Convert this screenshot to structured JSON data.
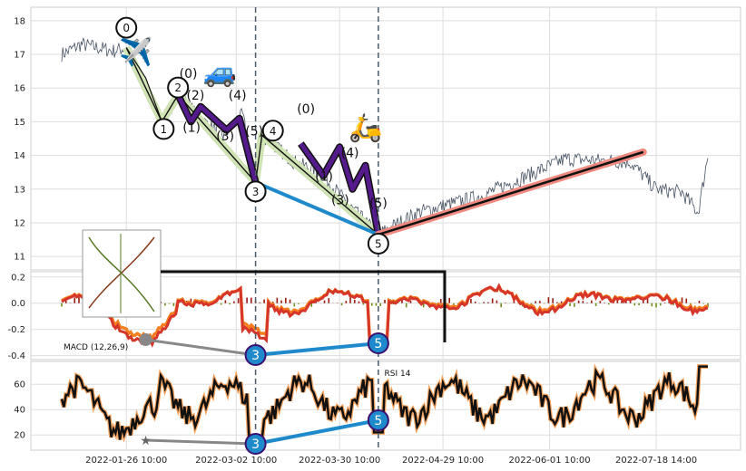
{
  "chart_data": [
    {
      "panel": "price",
      "type": "line",
      "ylim": [
        10.6,
        18.4
      ],
      "y_ticks": [
        11,
        12,
        13,
        14,
        15,
        16,
        17,
        18
      ],
      "grid": true,
      "x_ticks": [
        "2022-01-26 10:00",
        "2022-03-02 10:00",
        "2022-03-30 10:00",
        "2022-04-29 10:00",
        "2022-06-01 10:00",
        "2022-07-18 14:00"
      ],
      "wave_points": [
        {
          "label": "0",
          "t": 0.1,
          "y": 17.2
        },
        {
          "label": "1",
          "t": 0.155,
          "y": 15.0
        },
        {
          "label": "2",
          "t": 0.18,
          "y": 15.8
        },
        {
          "label": "3",
          "t": 0.3,
          "y": 13.2
        },
        {
          "label": "4",
          "t": 0.31,
          "y": 14.6
        },
        {
          "label": "5",
          "t": 0.49,
          "y": 11.65
        }
      ],
      "subwave_labels": [
        "(0)",
        "(1)",
        "(2)",
        "(3)",
        "(4)",
        "(5)",
        "(0)",
        "(1)",
        "(3)",
        "(4)",
        "(5)"
      ],
      "emojis": [
        "plane",
        "car",
        "scooter"
      ]
    },
    {
      "panel": "macd",
      "type": "line",
      "label": "MACD (12,26,9)",
      "ylim": [
        -0.43,
        0.24
      ],
      "y_ticks": [
        -0.4,
        -0.2,
        0.0,
        0.2
      ],
      "divergence_markers": [
        "3",
        "5"
      ]
    },
    {
      "panel": "rsi",
      "type": "line",
      "label": "RSI 14",
      "ylim": [
        8,
        78
      ],
      "y_ticks": [
        20,
        40,
        60
      ],
      "divergence_markers": [
        "3",
        "5"
      ]
    }
  ],
  "icons": {
    "plane": "airplane-icon",
    "car": "car-icon",
    "scooter": "scooter-icon"
  },
  "colors": {
    "price": "#4a5566",
    "black_wave": "#111111",
    "green_band": "#cfe3b4",
    "purple": "#551a8b",
    "blue": "#1f8acb",
    "salmon": "#f08a80",
    "macd": "#d6362a",
    "signal": "#f57f20",
    "hist_up": "#9c1b12",
    "hist_down": "#6e8c1a",
    "rsi_halo": "#f4a460"
  }
}
